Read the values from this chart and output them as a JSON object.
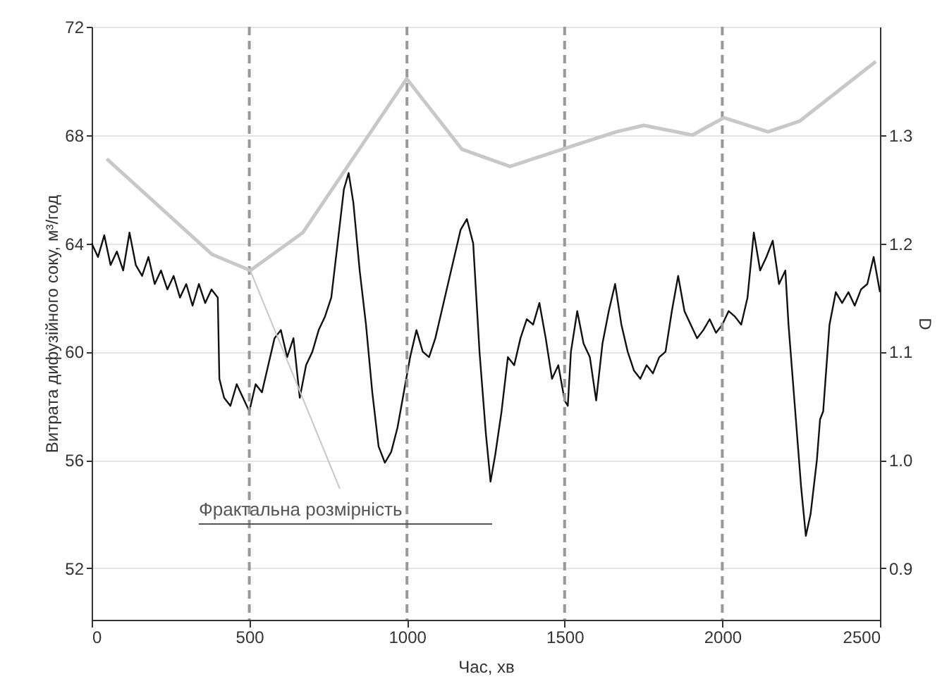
{
  "chart_data": {
    "type": "line",
    "xlabel": "Час, хв",
    "ylabel": "Витрата дифузійного соку, м³/год",
    "y2label": "D",
    "xlim": [
      0,
      2500
    ],
    "xticks": [
      0,
      500,
      1000,
      1500,
      2000,
      2500
    ],
    "ylim": [
      50.1,
      72
    ],
    "yticks": [
      52,
      56,
      60,
      64,
      68,
      72
    ],
    "y2lim": [
      0.8525,
      1.4
    ],
    "y2ticks": [
      0.9,
      {
        "value": 1.0,
        "label": "1.0"
      },
      1.1,
      1.2,
      1.3
    ],
    "grid": "y",
    "legend": false,
    "marker": "none",
    "line_style": "solid",
    "ref_lines": [
      {
        "axis": "x",
        "value": 500,
        "color": "#999999",
        "line_style": "dashed"
      },
      {
        "axis": "x",
        "value": 1000,
        "color": "#999999",
        "line_style": "dashed"
      },
      {
        "axis": "x",
        "value": 1500,
        "color": "#999999",
        "line_style": "dashed"
      },
      {
        "axis": "x",
        "value": 2000,
        "color": "#999999",
        "line_style": "dashed"
      }
    ],
    "series": [
      {
        "color": "#111111",
        "x": [
          0,
          20,
          40,
          60,
          80,
          100,
          120,
          140,
          160,
          180,
          200,
          220,
          240,
          260,
          280,
          300,
          320,
          340,
          360,
          380,
          400,
          405,
          420,
          440,
          460,
          480,
          500,
          520,
          540,
          560,
          580,
          600,
          620,
          640,
          660,
          680,
          700,
          720,
          740,
          760,
          780,
          800,
          815,
          830,
          850,
          870,
          890,
          910,
          930,
          950,
          970,
          990,
          1010,
          1030,
          1050,
          1070,
          1090,
          1110,
          1130,
          1150,
          1170,
          1190,
          1210,
          1230,
          1250,
          1265,
          1280,
          1300,
          1320,
          1340,
          1360,
          1380,
          1400,
          1420,
          1440,
          1460,
          1480,
          1500,
          1510,
          1520,
          1540,
          1560,
          1580,
          1600,
          1620,
          1640,
          1660,
          1680,
          1700,
          1720,
          1740,
          1760,
          1780,
          1800,
          1820,
          1840,
          1860,
          1880,
          1900,
          1920,
          1940,
          1960,
          1980,
          2000,
          2020,
          2040,
          2060,
          2080,
          2100,
          2120,
          2140,
          2160,
          2180,
          2200,
          2210,
          2230,
          2250,
          2265,
          2280,
          2300,
          2310,
          2320,
          2340,
          2360,
          2380,
          2400,
          2420,
          2440,
          2460,
          2480,
          2500
        ],
        "values": [
          64.0,
          63.5,
          64.3,
          63.2,
          63.7,
          63.0,
          64.4,
          63.2,
          62.8,
          63.5,
          62.5,
          63.0,
          62.3,
          62.8,
          62.0,
          62.5,
          61.7,
          62.5,
          61.8,
          62.3,
          62.0,
          59.0,
          58.3,
          58.0,
          58.8,
          58.3,
          57.8,
          58.8,
          58.5,
          59.5,
          60.5,
          60.8,
          59.8,
          60.5,
          58.3,
          59.5,
          60.0,
          60.8,
          61.3,
          62.0,
          64.0,
          66.0,
          66.6,
          65.5,
          63.0,
          61.0,
          58.5,
          56.5,
          55.9,
          56.3,
          57.2,
          58.5,
          59.8,
          60.8,
          60.0,
          59.8,
          60.5,
          61.5,
          62.5,
          63.5,
          64.5,
          64.9,
          64.0,
          60.0,
          57.0,
          55.2,
          56.2,
          57.8,
          59.8,
          59.5,
          60.5,
          61.2,
          61.0,
          61.8,
          60.5,
          59.0,
          59.5,
          58.2,
          58.0,
          60.0,
          61.5,
          60.3,
          59.8,
          58.2,
          60.3,
          61.5,
          62.5,
          61.0,
          60.0,
          59.3,
          59.0,
          59.5,
          59.2,
          59.8,
          60.0,
          61.5,
          62.8,
          61.5,
          61.0,
          60.5,
          60.8,
          61.2,
          60.7,
          61.0,
          61.5,
          61.3,
          61.0,
          62.0,
          64.4,
          63.0,
          63.5,
          64.1,
          62.5,
          63.0,
          61.0,
          58.0,
          55.0,
          53.2,
          54.0,
          56.0,
          57.5,
          57.8,
          61.0,
          62.2,
          61.8,
          62.2,
          61.7,
          62.3,
          62.5,
          63.5,
          62.2
        ]
      },
      {
        "name": "Фрактальна розмірність",
        "color": "#c8c8c8",
        "axis": "y2",
        "x": [
          48,
          381,
          503,
          670,
          999,
          1174,
          1327,
          1493,
          1664,
          1751,
          1905,
          2005,
          2145,
          2246,
          2487
        ],
        "values": [
          1.278,
          1.19,
          1.175,
          1.21,
          1.352,
          1.287,
          1.271,
          1.287,
          1.303,
          1.309,
          1.3,
          1.316,
          1.303,
          1.313,
          1.368
        ]
      }
    ]
  }
}
